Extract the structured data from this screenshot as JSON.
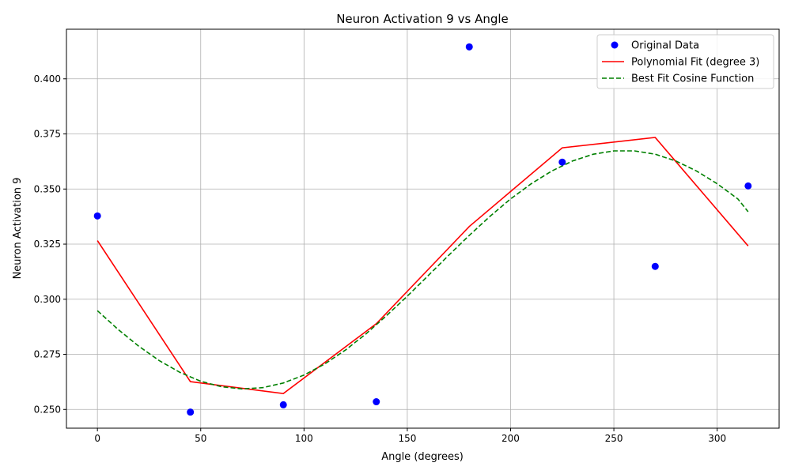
{
  "chart_data": {
    "type": "scatter",
    "title": "Neuron Activation 9 vs Angle",
    "xlabel": "Angle (degrees)",
    "ylabel": "Neuron Activation 9",
    "xlim": [
      -15,
      330
    ],
    "ylim": [
      0.2415,
      0.4225
    ],
    "xticks": [
      0,
      50,
      100,
      150,
      200,
      250,
      300
    ],
    "yticks": [
      0.25,
      0.275,
      0.3,
      0.325,
      0.35,
      0.375,
      0.4
    ],
    "xtick_labels": [
      "0",
      "50",
      "100",
      "150",
      "200",
      "250",
      "300"
    ],
    "ytick_labels": [
      "0.250",
      "0.275",
      "0.300",
      "0.325",
      "0.350",
      "0.375",
      "0.400"
    ],
    "grid": true,
    "legend_position": "top-right",
    "series": [
      {
        "name": "Original Data",
        "kind": "scatter",
        "color": "#0000ff",
        "x": [
          0,
          45,
          90,
          135,
          180,
          225,
          270,
          315
        ],
        "y": [
          0.3378,
          0.2488,
          0.2521,
          0.2535,
          0.4145,
          0.3622,
          0.3149,
          0.3514
        ]
      },
      {
        "name": "Polynomial Fit (degree 3)",
        "kind": "line",
        "color": "#ff0000",
        "dash": "solid",
        "x": [
          0,
          45,
          90,
          135,
          180,
          225,
          270,
          315
        ],
        "y": [
          0.3266,
          0.2626,
          0.2572,
          0.2889,
          0.333,
          0.3687,
          0.3734,
          0.3242
        ]
      },
      {
        "name": "Best Fit Cosine Function",
        "kind": "line",
        "color": "#008000",
        "dash": "dashed",
        "x": [
          0,
          10,
          20,
          30,
          40,
          50,
          60,
          70,
          80,
          90,
          100,
          110,
          120,
          130,
          140,
          150,
          160,
          170,
          180,
          190,
          200,
          210,
          220,
          230,
          240,
          250,
          260,
          270,
          280,
          290,
          300,
          310,
          315
        ],
        "y": [
          0.2948,
          0.2863,
          0.2787,
          0.2721,
          0.2668,
          0.2628,
          0.2603,
          0.2593,
          0.2599,
          0.262,
          0.2656,
          0.2706,
          0.2769,
          0.2843,
          0.2926,
          0.3014,
          0.3106,
          0.3199,
          0.329,
          0.3376,
          0.3455,
          0.3524,
          0.3582,
          0.3627,
          0.3658,
          0.3673,
          0.3673,
          0.3658,
          0.3627,
          0.3582,
          0.3524,
          0.3455,
          0.3397
        ]
      }
    ]
  }
}
